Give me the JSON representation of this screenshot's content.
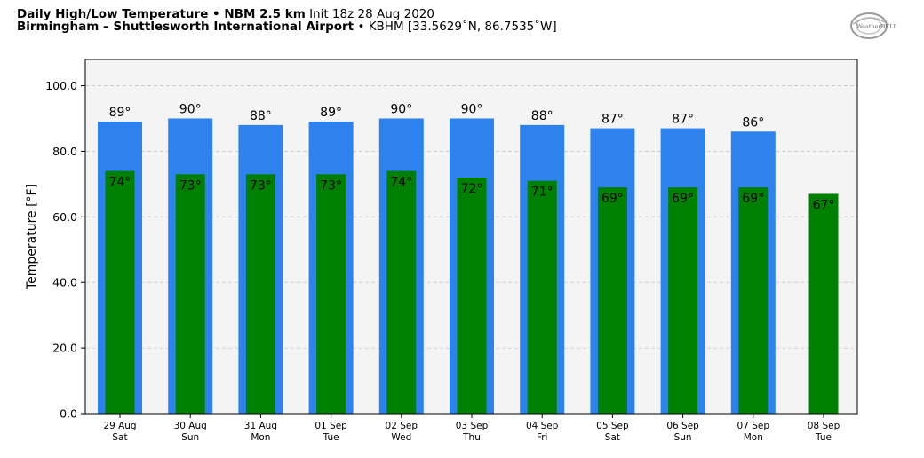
{
  "header": {
    "title": "Daily High/Low Temperature • NBM 2.5 km",
    "init": "Init 18z 28 Aug 2020",
    "location": "Birmingham – Shuttlesworth International Airport",
    "station": "• KBHM [33.5629˚N, 86.7535˚W]"
  },
  "logo": {
    "text": "WeatherBELL"
  },
  "colors": {
    "high": "#2e82ee",
    "low": "#008000",
    "plot_bg": "#f4f4f4"
  },
  "chart_data": {
    "type": "bar",
    "ylabel": "Temperature [°F]",
    "ylim": [
      0,
      108
    ],
    "yticks": [
      0,
      20,
      40,
      60,
      80,
      100
    ],
    "ytick_labels": [
      "0.0",
      "20.0",
      "40.0",
      "60.0",
      "80.0",
      "100.0"
    ],
    "grid": true,
    "categories": [
      {
        "date": "29 Aug",
        "day": "Sat"
      },
      {
        "date": "30 Aug",
        "day": "Sun"
      },
      {
        "date": "31 Aug",
        "day": "Mon"
      },
      {
        "date": "01 Sep",
        "day": "Tue"
      },
      {
        "date": "02 Sep",
        "day": "Wed"
      },
      {
        "date": "03 Sep",
        "day": "Thu"
      },
      {
        "date": "04 Sep",
        "day": "Fri"
      },
      {
        "date": "05 Sep",
        "day": "Sat"
      },
      {
        "date": "06 Sep",
        "day": "Sun"
      },
      {
        "date": "07 Sep",
        "day": "Mon"
      },
      {
        "date": "08 Sep",
        "day": "Tue"
      }
    ],
    "series": [
      {
        "values": [
          89,
          90,
          88,
          89,
          90,
          90,
          88,
          87,
          87,
          86,
          null
        ],
        "labels": [
          "89°",
          "90°",
          "88°",
          "89°",
          "90°",
          "90°",
          "88°",
          "87°",
          "87°",
          "86°",
          ""
        ]
      },
      {
        "values": [
          74,
          73,
          73,
          73,
          74,
          72,
          71,
          69,
          69,
          69,
          67
        ],
        "labels": [
          "74°",
          "73°",
          "73°",
          "73°",
          "74°",
          "72°",
          "71°",
          "69°",
          "69°",
          "69°",
          "67°"
        ]
      }
    ]
  }
}
